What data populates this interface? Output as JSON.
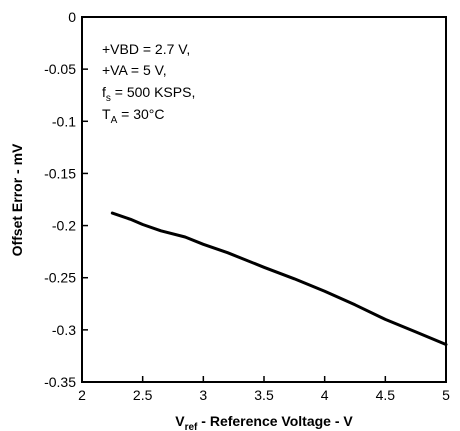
{
  "chart_data": {
    "type": "line",
    "xlabel": {
      "main": "V",
      "sub": "ref",
      "rest": " - Reference Voltage - V"
    },
    "ylabel": "Offset Error - mV",
    "xlim": [
      2,
      5
    ],
    "ylim": [
      -0.35,
      0
    ],
    "xticks": [
      "2",
      "2.5",
      "3",
      "3.5",
      "4",
      "4.5",
      "5"
    ],
    "yticks": [
      "0",
      "-0.05",
      "-0.1",
      "-0.15",
      "-0.2",
      "-0.25",
      "-0.3",
      "-0.35"
    ],
    "grid": false,
    "annotation": {
      "line1": "+VBD = 2.7 V,",
      "line2": "+VA = 5 V,",
      "line3": {
        "main": "f",
        "sub": "s",
        "rest": " = 500 KSPS,"
      },
      "line4": {
        "main": "T",
        "sub": "A",
        "rest": " = 30°C"
      }
    },
    "series": [
      {
        "color": "#000000",
        "x": [
          2.25,
          2.4,
          2.5,
          2.65,
          2.85,
          3.0,
          3.2,
          3.5,
          3.75,
          4.0,
          4.25,
          4.5,
          4.75,
          5.0
        ],
        "y": [
          -0.188,
          -0.194,
          -0.199,
          -0.205,
          -0.211,
          -0.218,
          -0.226,
          -0.24,
          -0.251,
          -0.263,
          -0.276,
          -0.29,
          -0.302,
          -0.314
        ]
      }
    ]
  }
}
